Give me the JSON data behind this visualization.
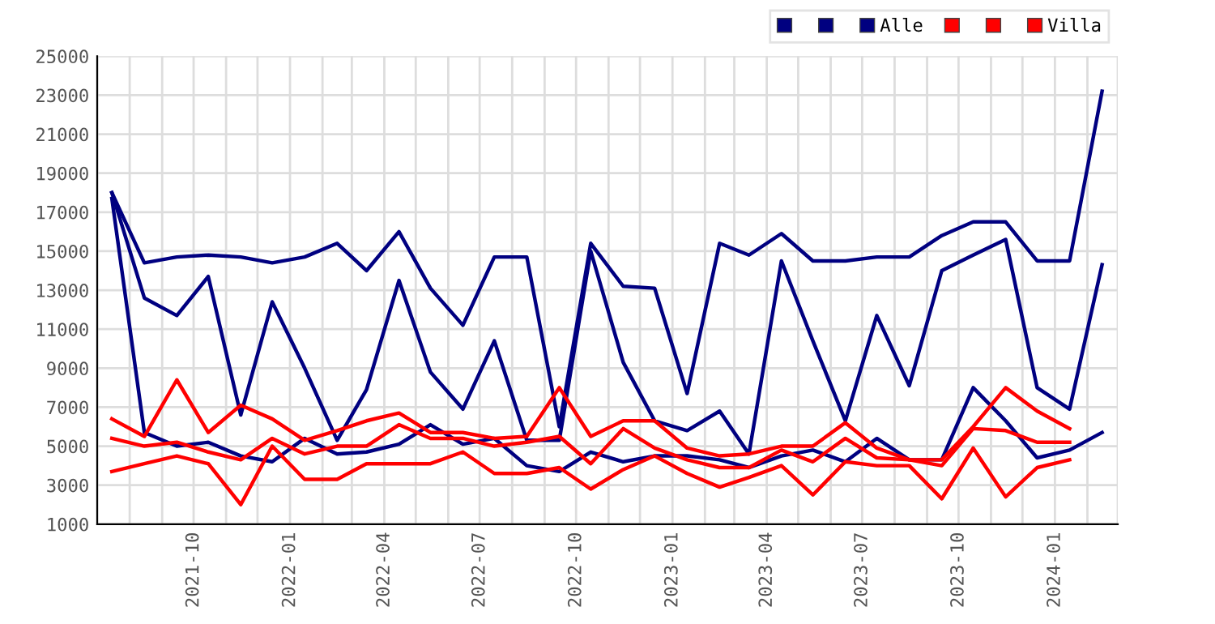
{
  "chart_data": {
    "type": "line",
    "x": [
      "2021-07-15",
      "2021-08-15",
      "2021-09-15",
      "2021-10-15",
      "2021-11-15",
      "2021-12-15",
      "2022-01-15",
      "2022-02-15",
      "2022-03-15",
      "2022-04-15",
      "2022-05-15",
      "2022-06-15",
      "2022-07-15",
      "2022-08-15",
      "2022-09-15",
      "2022-10-15",
      "2022-11-15",
      "2022-12-15",
      "2023-01-15",
      "2023-02-15",
      "2023-03-15",
      "2023-04-15",
      "2023-05-15",
      "2023-06-15",
      "2023-07-15",
      "2023-08-15",
      "2023-09-15",
      "2023-10-15",
      "2023-11-15",
      "2023-12-15",
      "2024-01-15",
      "2024-02-15"
    ],
    "series": [
      {
        "color": "#000080",
        "values": [
          18000,
          14400,
          14700,
          14800,
          14700,
          14400,
          14700,
          15400,
          14000,
          16000,
          13100,
          11200,
          14700,
          14700,
          6000,
          15400,
          13200,
          13100,
          7700,
          15400,
          14800,
          15900,
          14500,
          14500,
          14700,
          14700,
          15800,
          16500,
          16500,
          14500,
          14500,
          23200
        ]
      },
      {
        "color": "#000080",
        "values": [
          18000,
          12600,
          11700,
          13700,
          6600,
          12400,
          9000,
          5300,
          7900,
          13500,
          8800,
          6900,
          10400,
          5300,
          5300,
          15000,
          9300,
          6300,
          5800,
          6800,
          4600,
          14500,
          10400,
          6300,
          11700,
          8100,
          14000,
          14800,
          15600,
          8000,
          6900,
          14300
        ]
      },
      {
        "name": "Alle",
        "color": "#000080",
        "values": [
          17700,
          5700,
          5000,
          5200,
          4500,
          4200,
          5400,
          4600,
          4700,
          5100,
          6100,
          5100,
          5400,
          4000,
          3700,
          4700,
          4200,
          4500,
          4500,
          4300,
          3900,
          4500,
          4800,
          4200,
          5400,
          4300,
          4300,
          8000,
          6300,
          4400,
          4800,
          5700
        ]
      },
      {
        "color": "#ff0000",
        "values": [
          6400,
          5500,
          8400,
          5700,
          7100,
          6400,
          5300,
          5800,
          6300,
          6700,
          5700,
          5700,
          5400,
          5500,
          8000,
          5500,
          6300,
          6300,
          4900,
          4500,
          4600,
          5000,
          5000,
          6200,
          4900,
          4300,
          4300,
          6000,
          8000,
          6800,
          5900,
          null
        ]
      },
      {
        "color": "#ff0000",
        "values": [
          5400,
          5000,
          5200,
          4700,
          4300,
          5400,
          4600,
          5000,
          5000,
          6100,
          5400,
          5400,
          5000,
          5200,
          5500,
          4100,
          5900,
          4900,
          4300,
          3900,
          3900,
          4800,
          4200,
          5400,
          4400,
          4300,
          4000,
          5900,
          5800,
          5200,
          5200,
          null
        ]
      },
      {
        "name": "Villa",
        "color": "#ff0000",
        "values": [
          3700,
          4100,
          4500,
          4100,
          2000,
          5000,
          3300,
          3300,
          4100,
          4100,
          4100,
          4700,
          3600,
          3600,
          3900,
          2800,
          3800,
          4500,
          3600,
          2900,
          3400,
          4000,
          2500,
          4200,
          4000,
          4000,
          2300,
          4900,
          2400,
          3900,
          4300,
          null
        ]
      }
    ],
    "xlim": [
      "2021-07-01",
      "2024-03-01"
    ],
    "xticks": [
      {
        "value": "2021-07-01",
        "label": null
      },
      {
        "value": "2021-08-01",
        "label": null
      },
      {
        "value": "2021-09-01",
        "label": null
      },
      {
        "value": "2021-10-01",
        "label": "2021-10"
      },
      {
        "value": "2021-11-01",
        "label": null
      },
      {
        "value": "2021-12-01",
        "label": null
      },
      {
        "value": "2022-01-01",
        "label": "2022-01"
      },
      {
        "value": "2022-02-01",
        "label": null
      },
      {
        "value": "2022-03-01",
        "label": null
      },
      {
        "value": "2022-04-01",
        "label": "2022-04"
      },
      {
        "value": "2022-05-01",
        "label": null
      },
      {
        "value": "2022-06-01",
        "label": null
      },
      {
        "value": "2022-07-01",
        "label": "2022-07"
      },
      {
        "value": "2022-08-01",
        "label": null
      },
      {
        "value": "2022-09-01",
        "label": null
      },
      {
        "value": "2022-10-01",
        "label": "2022-10"
      },
      {
        "value": "2022-11-01",
        "label": null
      },
      {
        "value": "2022-12-01",
        "label": null
      },
      {
        "value": "2023-01-01",
        "label": "2023-01"
      },
      {
        "value": "2023-02-01",
        "label": null
      },
      {
        "value": "2023-03-01",
        "label": null
      },
      {
        "value": "2023-04-01",
        "label": "2023-04"
      },
      {
        "value": "2023-05-01",
        "label": null
      },
      {
        "value": "2023-06-01",
        "label": null
      },
      {
        "value": "2023-07-01",
        "label": "2023-07"
      },
      {
        "value": "2023-08-01",
        "label": null
      },
      {
        "value": "2023-09-01",
        "label": null
      },
      {
        "value": "2023-10-01",
        "label": "2023-10"
      },
      {
        "value": "2023-11-01",
        "label": null
      },
      {
        "value": "2023-12-01",
        "label": null
      },
      {
        "value": "2024-01-01",
        "label": "2024-01"
      },
      {
        "value": "2024-02-01",
        "label": null
      },
      {
        "value": "2024-03-01",
        "label": null
      }
    ],
    "ylim": [
      1000,
      25000
    ],
    "yticks": [
      1000,
      3000,
      5000,
      7000,
      9000,
      11000,
      13000,
      15000,
      17000,
      19000,
      21000,
      23000,
      25000
    ],
    "grid": true,
    "legend": "top right",
    "marker": "none",
    "line_style": "solid"
  }
}
